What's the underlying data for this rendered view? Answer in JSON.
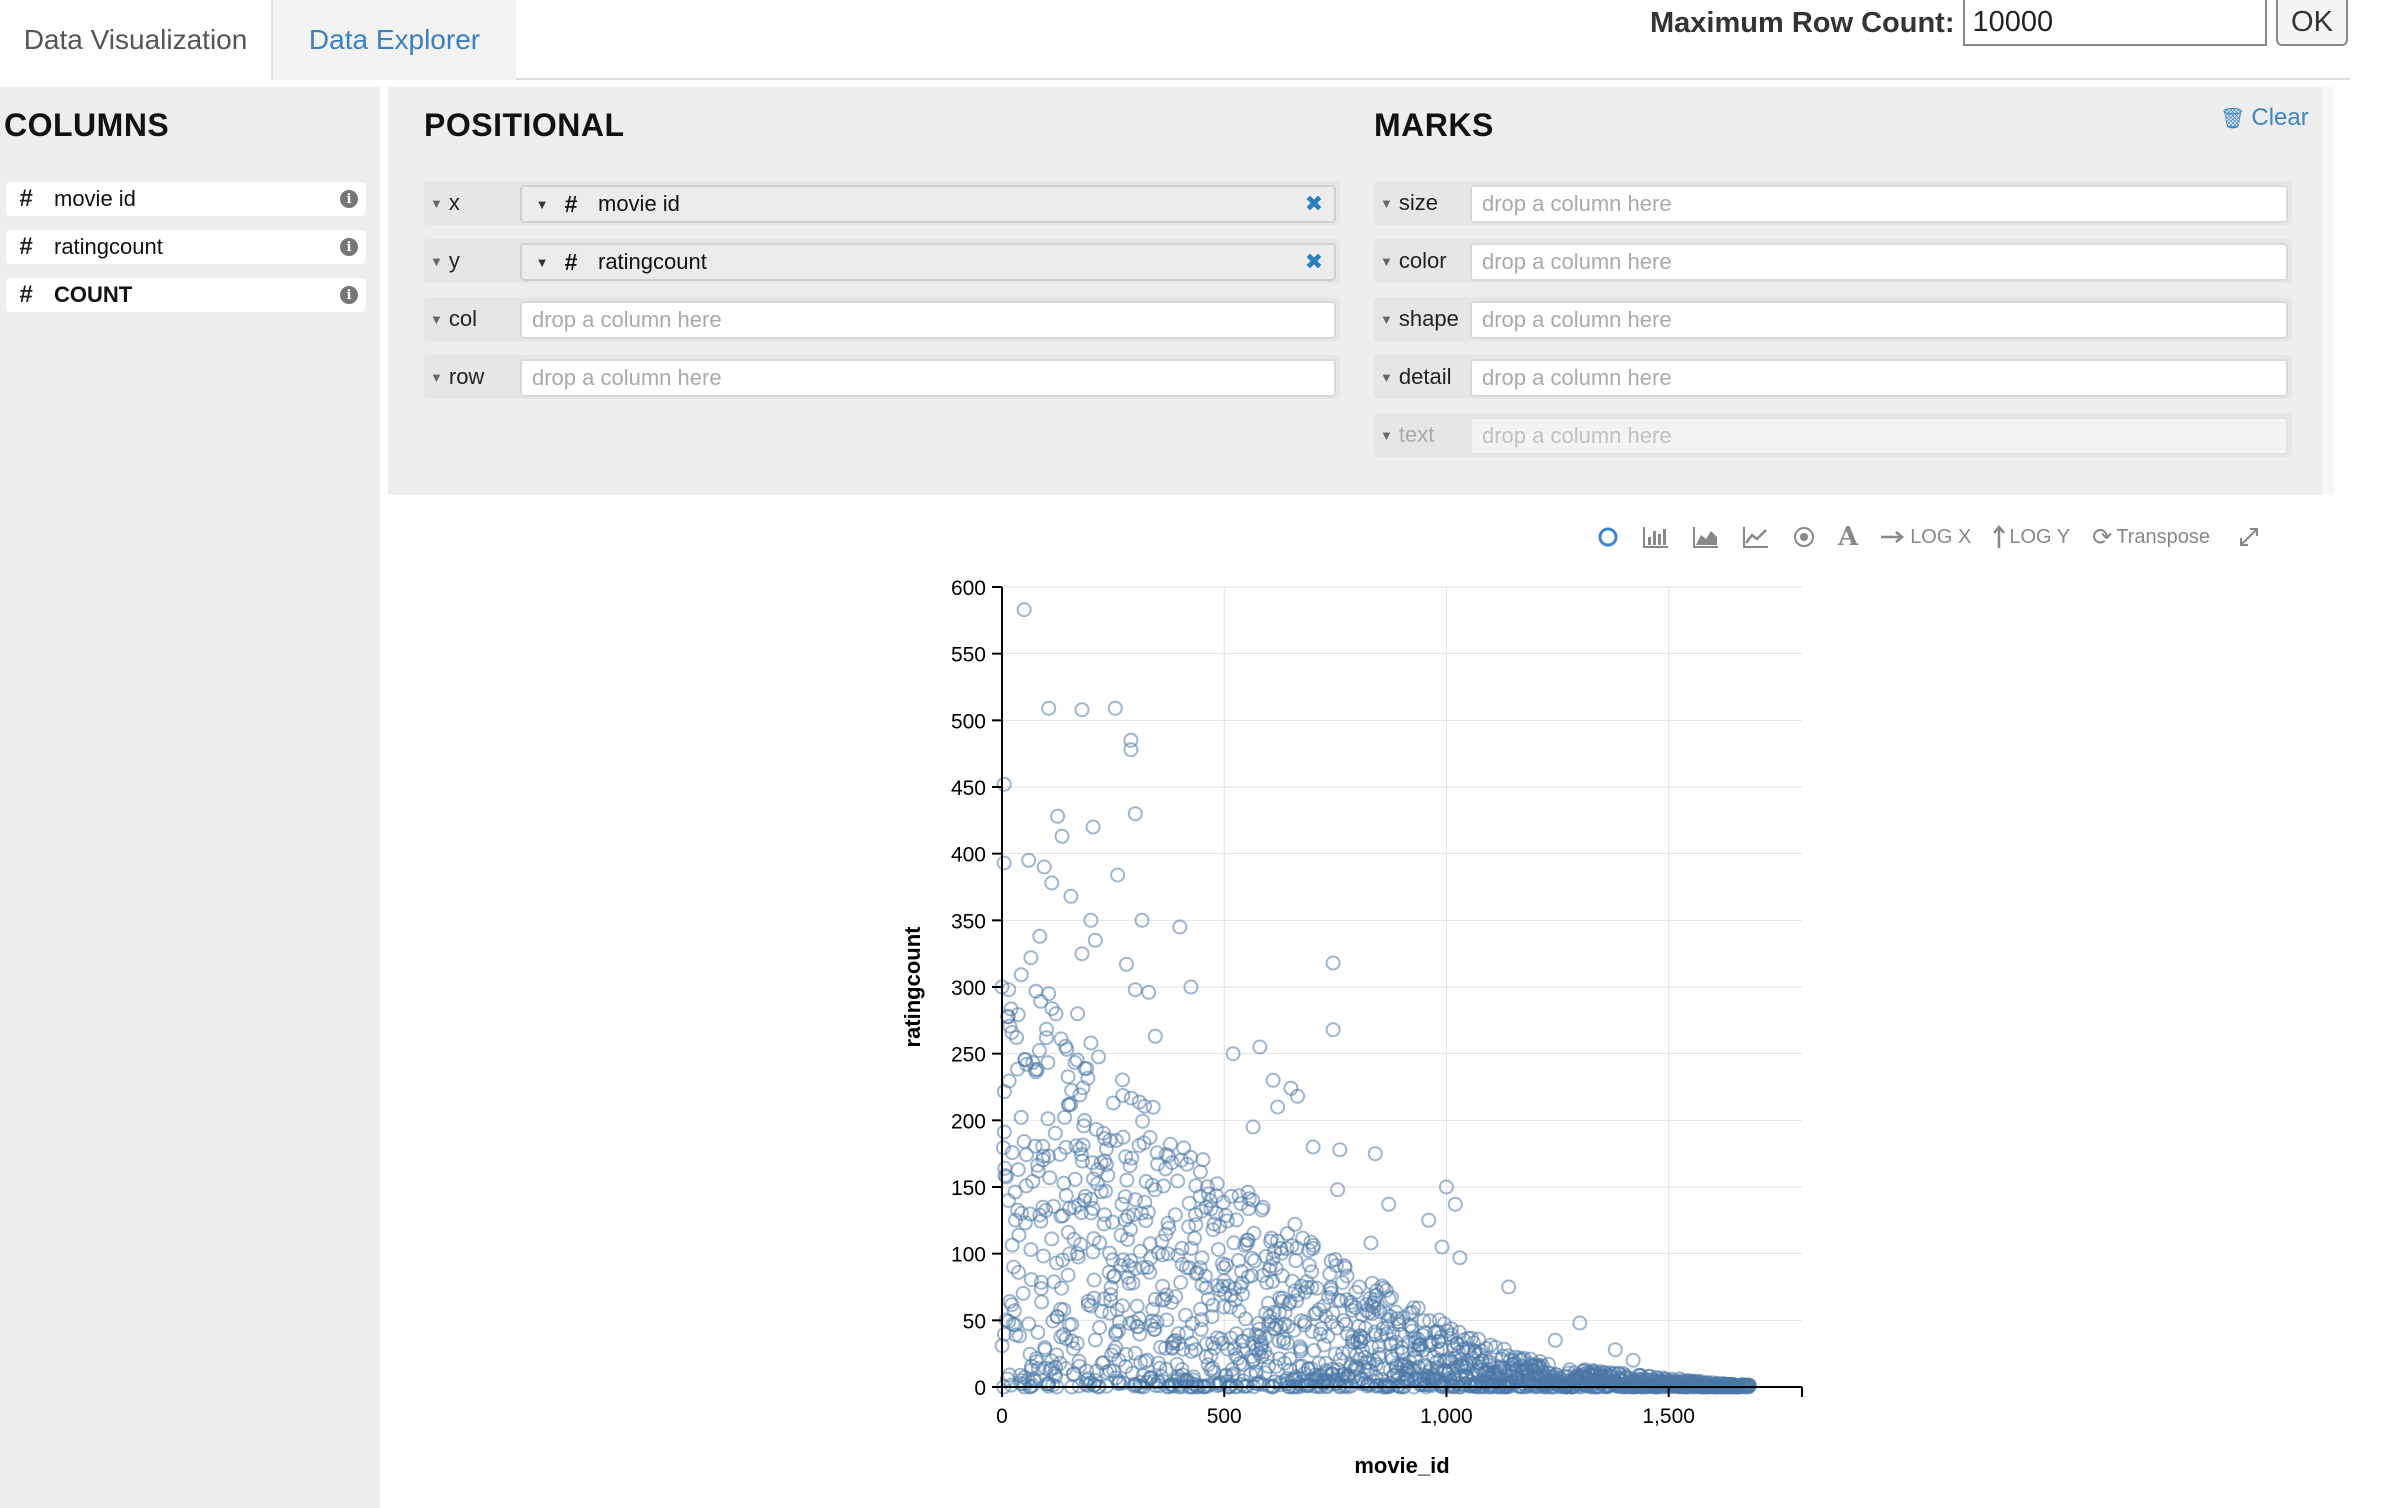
{
  "tabs": {
    "visualization": "Data Visualization",
    "explorer": "Data Explorer"
  },
  "max_row": {
    "label": "Maximum Row Count:",
    "value": "10000",
    "ok_label": "OK"
  },
  "columns": {
    "title": "COLUMNS",
    "items": [
      {
        "name": "movie id",
        "bold": false
      },
      {
        "name": "ratingcount",
        "bold": false
      },
      {
        "name": "COUNT",
        "bold": true
      }
    ]
  },
  "positional": {
    "title": "POSITIONAL",
    "shelves": [
      {
        "channel": "x",
        "field": "movie id"
      },
      {
        "channel": "y",
        "field": "ratingcount"
      },
      {
        "channel": "col",
        "field": null
      },
      {
        "channel": "row",
        "field": null
      }
    ]
  },
  "marks": {
    "title": "MARKS",
    "clear_label": "Clear",
    "shelves": [
      {
        "channel": "size",
        "disabled": false
      },
      {
        "channel": "color",
        "disabled": false
      },
      {
        "channel": "shape",
        "disabled": false
      },
      {
        "channel": "detail",
        "disabled": false
      },
      {
        "channel": "text",
        "disabled": true
      }
    ]
  },
  "drop_placeholder": "drop a column here",
  "toolbar": {
    "log_x": "LOG X",
    "log_y": "LOG Y",
    "transpose": "Transpose",
    "active_mark": "point"
  },
  "colors": {
    "accent": "#3b86c9",
    "point": "#4c78a8"
  },
  "chart_data": {
    "type": "scatter",
    "xlabel": "movie_id",
    "ylabel": "ratingcount",
    "xlim": [
      0,
      1800
    ],
    "ylim": [
      0,
      600
    ],
    "x_ticks": [
      0,
      500,
      1000,
      1500
    ],
    "x_tick_labels": [
      "0",
      "500",
      "1,000",
      "1,500"
    ],
    "y_ticks": [
      0,
      50,
      100,
      150,
      200,
      250,
      300,
      350,
      400,
      450,
      500,
      550,
      600
    ],
    "grid": true,
    "mark": "open-circle",
    "highlight_points": [
      [
        50,
        583
      ],
      [
        105,
        509
      ],
      [
        180,
        508
      ],
      [
        255,
        509
      ],
      [
        290,
        485
      ],
      [
        290,
        478
      ],
      [
        5,
        452
      ],
      [
        300,
        430
      ],
      [
        125,
        428
      ],
      [
        135,
        413
      ],
      [
        205,
        420
      ],
      [
        260,
        384
      ],
      [
        95,
        390
      ],
      [
        60,
        395
      ],
      [
        5,
        393
      ],
      [
        112,
        378
      ],
      [
        155,
        368
      ],
      [
        315,
        350
      ],
      [
        400,
        345
      ],
      [
        200,
        350
      ],
      [
        85,
        338
      ],
      [
        180,
        325
      ],
      [
        210,
        335
      ],
      [
        745,
        318
      ],
      [
        280,
        317
      ],
      [
        425,
        300
      ],
      [
        745,
        268
      ],
      [
        580,
        255
      ],
      [
        520,
        250
      ],
      [
        0,
        300
      ],
      [
        15,
        298
      ],
      [
        65,
        322
      ],
      [
        105,
        295
      ],
      [
        300,
        298
      ],
      [
        330,
        296
      ],
      [
        345,
        263
      ],
      [
        170,
        280
      ],
      [
        100,
        262
      ],
      [
        200,
        258
      ],
      [
        610,
        230
      ],
      [
        650,
        224
      ],
      [
        665,
        218
      ],
      [
        565,
        195
      ],
      [
        620,
        210
      ],
      [
        1000,
        150
      ],
      [
        1020,
        137
      ],
      [
        700,
        180
      ],
      [
        760,
        178
      ],
      [
        840,
        175
      ],
      [
        960,
        125
      ],
      [
        990,
        105
      ],
      [
        1030,
        97
      ],
      [
        755,
        148
      ],
      [
        870,
        137
      ],
      [
        830,
        108
      ],
      [
        1380,
        28
      ],
      [
        1420,
        20
      ],
      [
        1300,
        48
      ],
      [
        1245,
        35
      ],
      [
        1140,
        75
      ]
    ],
    "point_count": 1682,
    "note_generation": "remaining points densely populate triangle region decreasing from high counts at low movie_id to near zero at ~1682"
  }
}
